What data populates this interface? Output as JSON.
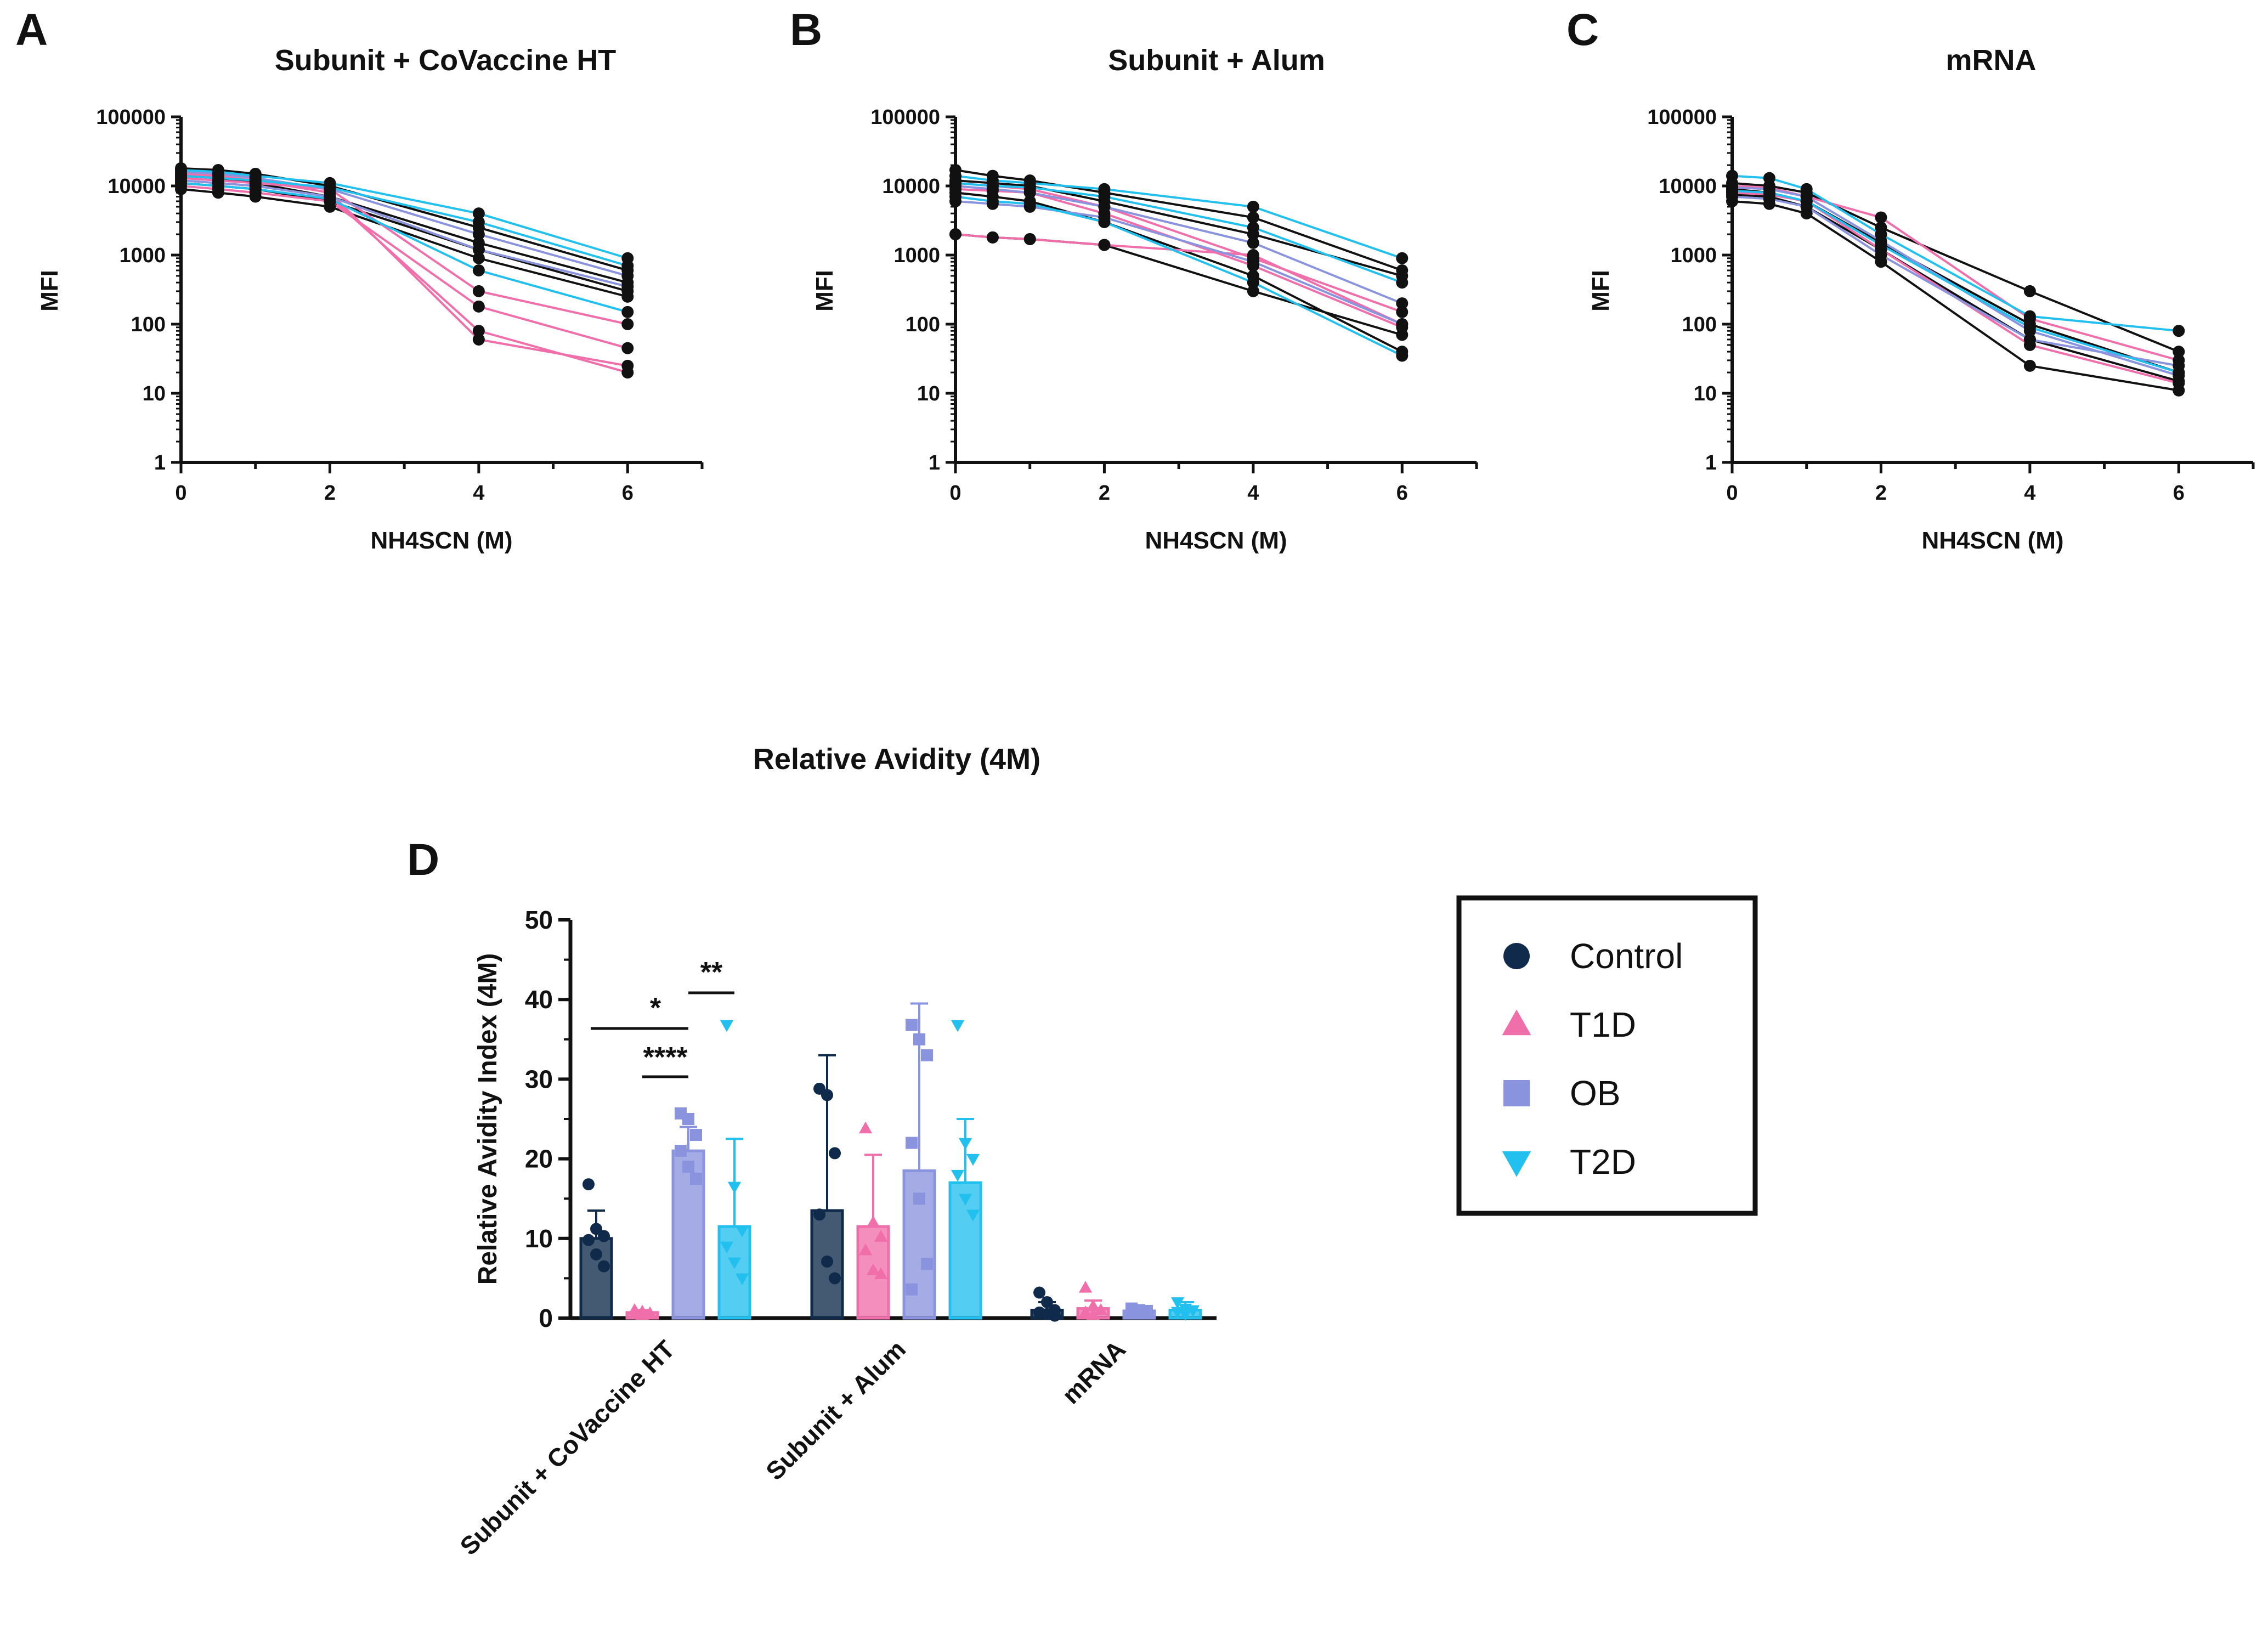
{
  "panels": [
    {
      "letter": "A",
      "title": "Subunit + CoVaccine HT"
    },
    {
      "letter": "B",
      "title": "Subunit + Alum"
    },
    {
      "letter": "C",
      "title": "mRNA"
    },
    {
      "letter": "D",
      "title": "Relative Avidity (4M)"
    }
  ],
  "colors": {
    "Control": "#0f2a4a",
    "T1D": "#f06eaa",
    "OB": "#8a93de",
    "T2D": "#22c0ee"
  },
  "chart_data": [
    {
      "type": "line",
      "panel": "A",
      "title": "Subunit + CoVaccine HT",
      "xlabel": "NH4SCN (M)",
      "ylabel": "MFI",
      "yscale": "log",
      "ylim": [
        1,
        100000
      ],
      "xlim": [
        0,
        7
      ],
      "x": [
        0,
        0.5,
        1,
        2,
        4,
        6
      ],
      "xticks": [
        "0",
        "2",
        "4",
        "6"
      ],
      "yticks": [
        "1",
        "10",
        "100",
        "1000",
        "10000",
        "100000"
      ],
      "series": [
        {
          "name": "Control",
          "values": [
            14000,
            13000,
            11000,
            7000,
            1500,
            400
          ]
        },
        {
          "name": "Control",
          "values": [
            9000,
            8000,
            7000,
            5000,
            900,
            250
          ]
        },
        {
          "name": "Control",
          "values": [
            18000,
            17000,
            15000,
            10000,
            2500,
            600
          ]
        },
        {
          "name": "Control",
          "values": [
            11000,
            10000,
            9000,
            6000,
            1200,
            300
          ]
        },
        {
          "name": "T1D",
          "values": [
            12000,
            11000,
            10000,
            7000,
            80,
            20
          ]
        },
        {
          "name": "T1D",
          "values": [
            15000,
            14000,
            12000,
            8000,
            60,
            25
          ]
        },
        {
          "name": "T1D",
          "values": [
            10000,
            9000,
            8000,
            6000,
            180,
            45
          ]
        },
        {
          "name": "T1D",
          "values": [
            13000,
            12000,
            11000,
            9000,
            300,
            100
          ]
        },
        {
          "name": "OB",
          "values": [
            16000,
            15000,
            13000,
            9000,
            2000,
            500
          ]
        },
        {
          "name": "OB",
          "values": [
            12000,
            11000,
            10000,
            7000,
            1200,
            350
          ]
        },
        {
          "name": "T2D",
          "values": [
            17000,
            16000,
            14000,
            11000,
            4000,
            900
          ]
        },
        {
          "name": "T2D",
          "values": [
            11000,
            10000,
            9000,
            6500,
            600,
            150
          ]
        },
        {
          "name": "T2D",
          "values": [
            14000,
            13000,
            12000,
            9500,
            3000,
            700
          ]
        }
      ]
    },
    {
      "type": "line",
      "panel": "B",
      "title": "Subunit + Alum",
      "xlabel": "NH4SCN (M)",
      "ylabel": "MFI",
      "yscale": "log",
      "ylim": [
        1,
        100000
      ],
      "xlim": [
        0,
        7
      ],
      "x": [
        0,
        0.5,
        1,
        2,
        4,
        6
      ],
      "xticks": [
        "0",
        "2",
        "4",
        "6"
      ],
      "yticks": [
        "1",
        "10",
        "100",
        "1000",
        "10000",
        "100000"
      ],
      "series": [
        {
          "name": "Control",
          "values": [
            17000,
            14000,
            12000,
            8000,
            3500,
            600
          ]
        },
        {
          "name": "Control",
          "values": [
            8000,
            7000,
            6000,
            3000,
            500,
            40
          ]
        },
        {
          "name": "Control",
          "values": [
            12000,
            11000,
            10000,
            6000,
            2000,
            500
          ]
        },
        {
          "name": "Control",
          "values": [
            2000,
            1800,
            1700,
            1400,
            300,
            70
          ]
        },
        {
          "name": "T1D",
          "values": [
            2000,
            1800,
            1700,
            1400,
            1000,
            100
          ]
        },
        {
          "name": "T1D",
          "values": [
            11000,
            10000,
            9000,
            5000,
            900,
            150
          ]
        },
        {
          "name": "T1D",
          "values": [
            9000,
            8500,
            8000,
            4000,
            700,
            90
          ]
        },
        {
          "name": "OB",
          "values": [
            10000,
            9000,
            8000,
            5000,
            1500,
            200
          ]
        },
        {
          "name": "OB",
          "values": [
            6000,
            5500,
            5000,
            3500,
            800,
            100
          ]
        },
        {
          "name": "T2D",
          "values": [
            14000,
            12000,
            11000,
            9000,
            5000,
            900
          ]
        },
        {
          "name": "T2D",
          "values": [
            7000,
            6000,
            5500,
            3000,
            400,
            35
          ]
        },
        {
          "name": "T2D",
          "values": [
            11000,
            10000,
            9500,
            7000,
            2500,
            400
          ]
        }
      ]
    },
    {
      "type": "line",
      "panel": "C",
      "title": "mRNA",
      "xlabel": "NH4SCN (M)",
      "ylabel": "MFI",
      "yscale": "log",
      "ylim": [
        1,
        100000
      ],
      "xlim": [
        0,
        7
      ],
      "x": [
        0,
        0.5,
        1,
        2,
        4,
        6
      ],
      "xticks": [
        "0",
        "2",
        "4",
        "6"
      ],
      "yticks": [
        "1",
        "10",
        "100",
        "1000",
        "10000",
        "100000"
      ],
      "series": [
        {
          "name": "Control",
          "values": [
            9000,
            8000,
            6000,
            1500,
            100,
            20
          ]
        },
        {
          "name": "Control",
          "values": [
            6000,
            5500,
            4000,
            800,
            25,
            11
          ]
        },
        {
          "name": "Control",
          "values": [
            11000,
            10000,
            8000,
            2500,
            300,
            40
          ]
        },
        {
          "name": "Control",
          "values": [
            7500,
            7000,
            5000,
            1200,
            60,
            15
          ]
        },
        {
          "name": "T1D",
          "values": [
            10000,
            9500,
            7000,
            3500,
            120,
            30
          ]
        },
        {
          "name": "T1D",
          "values": [
            8000,
            7500,
            6000,
            1200,
            50,
            14
          ]
        },
        {
          "name": "OB",
          "values": [
            9500,
            9000,
            7000,
            1600,
            80,
            18
          ]
        },
        {
          "name": "OB",
          "values": [
            7000,
            6500,
            5000,
            1000,
            60,
            25
          ]
        },
        {
          "name": "T2D",
          "values": [
            14000,
            13000,
            9000,
            2000,
            130,
            80
          ]
        },
        {
          "name": "T2D",
          "values": [
            8500,
            8000,
            6000,
            1400,
            90,
            20
          ]
        }
      ]
    },
    {
      "type": "bar",
      "panel": "D",
      "title": "Relative Avidity (4M)",
      "xlabel": "",
      "ylabel": "Relative Avidity Index (4M)",
      "ylim": [
        0,
        50
      ],
      "yticks": [
        "0",
        "10",
        "20",
        "30",
        "40",
        "50"
      ],
      "categories": [
        "Subunit + CoVaccine HT",
        "Subunit + Alum",
        "mRNA"
      ],
      "series": [
        {
          "name": "Control",
          "marker": "circle",
          "values": [
            10.0,
            13.5,
            1.0
          ],
          "sd": [
            3.5,
            19.5,
            1.0
          ],
          "points": [
            [
              16.8,
              11.2,
              10.3,
              9.8,
              8.0,
              6.5
            ],
            [
              28.8,
              28.0,
              20.7,
              13.0,
              7.1,
              5.0
            ],
            [
              3.2,
              2.0,
              1.0,
              0.7,
              0.5,
              0.3
            ]
          ]
        },
        {
          "name": "T1D",
          "marker": "triangle-up",
          "values": [
            0.7,
            11.5,
            1.2
          ],
          "sd": [
            0.3,
            9.0,
            1.0
          ],
          "points": [
            [
              1.0,
              0.8,
              0.6,
              0.5,
              0.4
            ],
            [
              23.8,
              12.0,
              10.2,
              8.5,
              6.0,
              5.5
            ],
            [
              3.8,
              1.5,
              1.0,
              0.7,
              0.4
            ]
          ]
        },
        {
          "name": "OB",
          "marker": "square",
          "values": [
            21.0,
            18.5,
            0.9
          ],
          "sd": [
            3.0,
            21.0,
            0.5
          ],
          "points": [
            [
              25.7,
              25.0,
              23.0,
              21.0,
              19.0,
              17.5
            ],
            [
              36.8,
              35.0,
              33.0,
              22.0,
              15.0,
              6.8,
              3.6
            ],
            [
              1.2,
              1.0,
              0.9,
              0.7,
              0.6
            ]
          ]
        },
        {
          "name": "T2D",
          "marker": "triangle-down",
          "values": [
            11.5,
            17.0,
            1.0
          ],
          "sd": [
            11.0,
            8.0,
            1.0
          ],
          "points": [
            [
              36.8,
              16.5,
              11.0,
              9.0,
              7.0,
              5.0
            ],
            [
              36.8,
              22.0,
              20.0,
              18.0,
              15.0,
              13.0
            ],
            [
              2.0,
              1.2,
              1.0,
              0.8,
              0.5
            ]
          ]
        }
      ],
      "significance": [
        {
          "label": "*",
          "from": "Control",
          "to": "OB",
          "category": "Subunit + CoVaccine HT"
        },
        {
          "label": "**",
          "from": "OB",
          "to": "T2D",
          "category": "Subunit + CoVaccine HT"
        },
        {
          "label": "****",
          "from": "T1D",
          "to": "OB",
          "category": "Subunit + CoVaccine HT"
        }
      ],
      "legend": [
        "Control",
        "T1D",
        "OB",
        "T2D"
      ],
      "legend_position": "right"
    }
  ]
}
